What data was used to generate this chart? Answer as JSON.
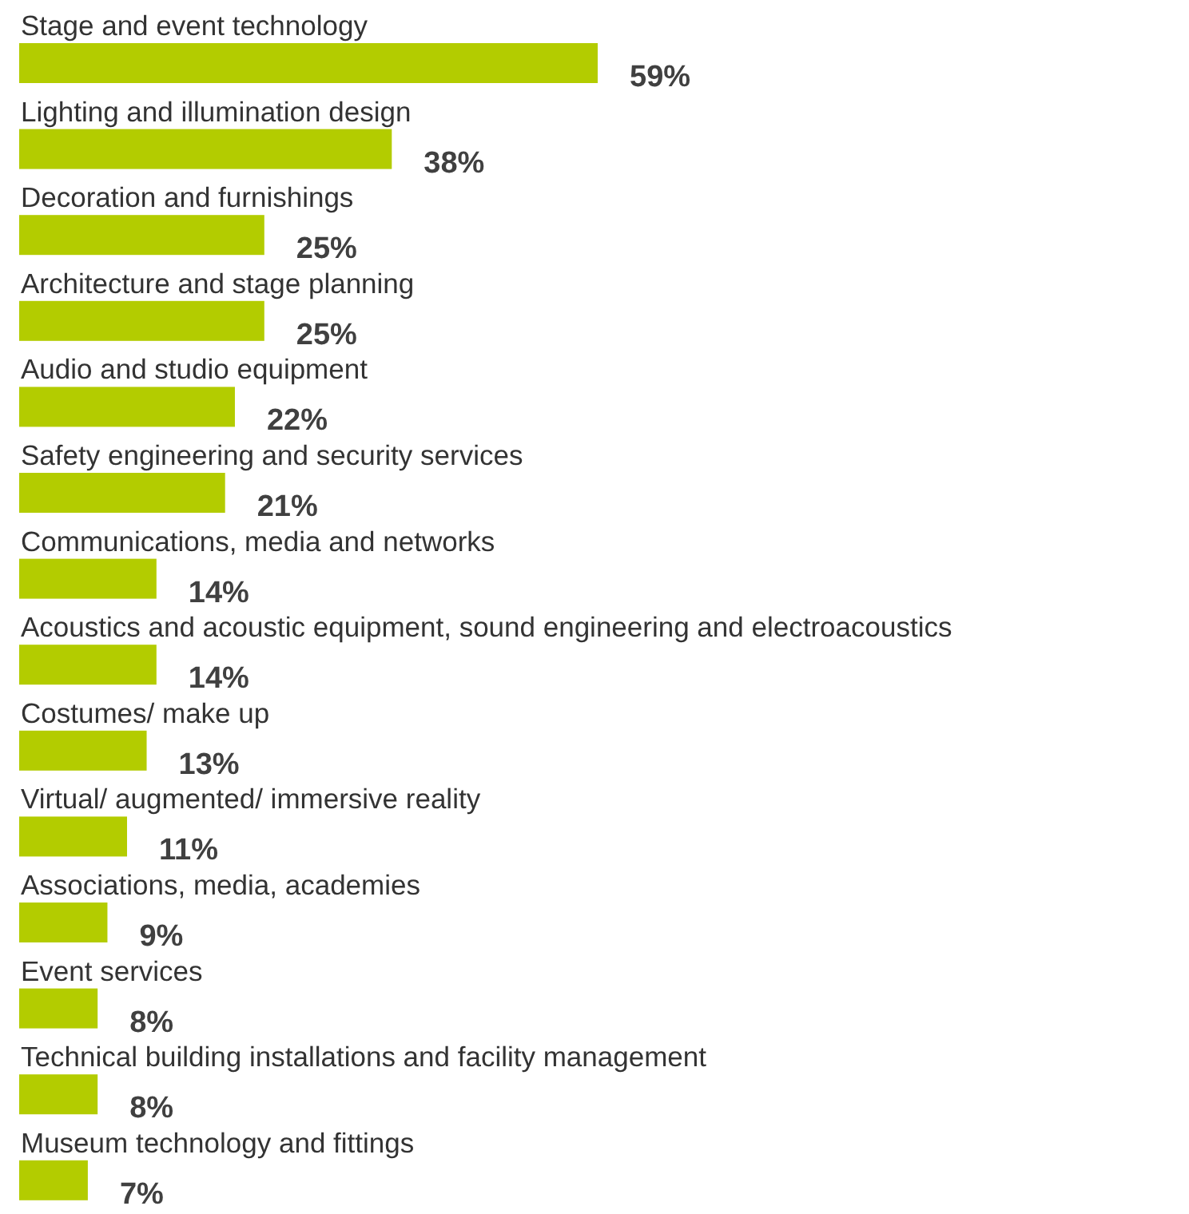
{
  "chart_data": {
    "type": "bar",
    "orientation": "horizontal",
    "categories": [
      "Stage and event technology",
      "Lighting and illumination design",
      "Decoration and furnishings",
      "Architecture and stage planning",
      "Audio and studio equipment",
      "Safety engineering and security services",
      "Communications, media and networks",
      "Acoustics and acoustic equipment, sound engineering and electroacoustics",
      "Costumes/ make up",
      "Virtual/ augmented/ immersive reality",
      "Associations, media, academies",
      "Event services",
      "Technical building installations and facility management",
      "Museum technology and fittings"
    ],
    "values": [
      59,
      38,
      25,
      25,
      22,
      21,
      14,
      14,
      13,
      11,
      9,
      8,
      8,
      7
    ],
    "value_labels": [
      "59%",
      "38%",
      "25%",
      "25%",
      "22%",
      "21%",
      "14%",
      "14%",
      "13%",
      "11%",
      "9%",
      "8%",
      "8%",
      "7%"
    ],
    "color": "#b3cc00"
  }
}
